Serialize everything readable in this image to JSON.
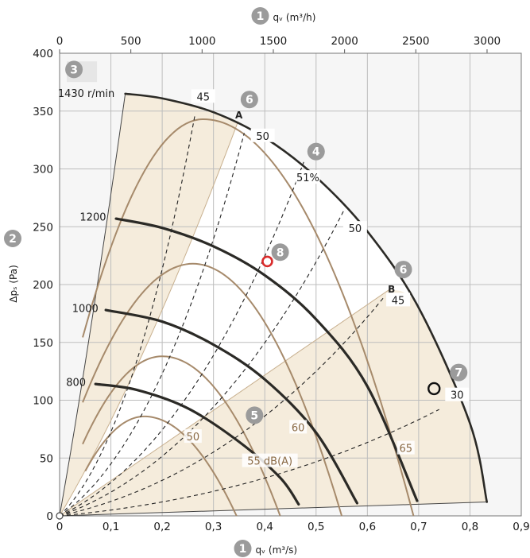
{
  "chart_data": {
    "type": "line",
    "title": "",
    "xlabel_bottom": "qᵥ (m³/s)",
    "xlabel_top": "qᵥ (m³/h)",
    "ylabel": "Δpₛ (Pa)",
    "xlim": [
      0,
      0.9
    ],
    "ylim": [
      0,
      400
    ],
    "xlim_top": [
      0,
      3240
    ],
    "x_ticks": [
      "0",
      "0,1",
      "0,2",
      "0,3",
      "0,4",
      "0,5",
      "0,6",
      "0,7",
      "0,8",
      "0,9"
    ],
    "x_tick_values": [
      0,
      0.1,
      0.2,
      0.3,
      0.4,
      0.5,
      0.6,
      0.7,
      0.8,
      0.9
    ],
    "x_top_ticks": [
      "0",
      "500",
      "1000",
      "1500",
      "2000",
      "2500",
      "3000"
    ],
    "x_top_tick_values": [
      0,
      500,
      1000,
      1500,
      2000,
      2500,
      3000
    ],
    "y_ticks": [
      "0",
      "50",
      "100",
      "150",
      "200",
      "250",
      "300",
      "350",
      "400"
    ],
    "y_tick_values": [
      0,
      50,
      100,
      150,
      200,
      250,
      300,
      350,
      400
    ],
    "grid": true,
    "speed_curves": [
      {
        "name": "1430 r/min",
        "label_at": [
          0.052,
          365
        ],
        "points": [
          [
            0.128,
            365
          ],
          [
            0.2,
            361
          ],
          [
            0.3,
            349
          ],
          [
            0.4,
            327
          ],
          [
            0.5,
            293
          ],
          [
            0.6,
            246
          ],
          [
            0.7,
            180
          ],
          [
            0.8,
            80
          ],
          [
            0.833,
            12
          ]
        ]
      },
      {
        "name": "1200",
        "label_at": [
          0.065,
          258
        ],
        "points": [
          [
            0.11,
            257
          ],
          [
            0.2,
            249
          ],
          [
            0.3,
            233
          ],
          [
            0.4,
            208
          ],
          [
            0.5,
            170
          ],
          [
            0.6,
            112
          ],
          [
            0.697,
            13
          ]
        ]
      },
      {
        "name": "1000",
        "label_at": [
          0.05,
          179
        ],
        "points": [
          [
            0.09,
            178
          ],
          [
            0.2,
            168
          ],
          [
            0.3,
            148
          ],
          [
            0.4,
            118
          ],
          [
            0.5,
            72
          ],
          [
            0.58,
            11
          ]
        ]
      },
      {
        "name": "800",
        "label_at": [
          0.032,
          115
        ],
        "points": [
          [
            0.07,
            114
          ],
          [
            0.15,
            109
          ],
          [
            0.25,
            93
          ],
          [
            0.35,
            64
          ],
          [
            0.43,
            33
          ],
          [
            0.466,
            10
          ]
        ]
      }
    ],
    "efficiency_lines": [
      {
        "label": "45",
        "label_at": [
          0.28,
          362
        ],
        "to": [
          0.264,
          347
        ]
      },
      {
        "label": "50",
        "label_at": [
          0.396,
          328
        ],
        "to": [
          0.36,
          331
        ]
      },
      {
        "label": "51%",
        "label_at": [
          0.484,
          292
        ],
        "to": [
          0.476,
          306
        ]
      },
      {
        "label": "50",
        "label_at": [
          0.576,
          248
        ],
        "to": [
          0.554,
          264
        ]
      },
      {
        "label": "45",
        "label_at": [
          0.66,
          186
        ],
        "to": [
          0.634,
          190
        ]
      },
      {
        "label": "30",
        "label_at": [
          0.775,
          104
        ],
        "to": [
          0.74,
          92
        ]
      }
    ],
    "noise_curves": [
      {
        "label": "50",
        "label_at": [
          0.26,
          68
        ],
        "apex": [
          0.165,
          86
        ],
        "ends": [
          0.05,
          0.345
        ]
      },
      {
        "label": "55 dB(A)",
        "label_at": [
          0.41,
          47
        ],
        "apex": [
          0.2,
          138
        ],
        "ends": [
          0.045,
          0.43
        ]
      },
      {
        "label": "60",
        "label_at": [
          0.465,
          76
        ],
        "apex": [
          0.26,
          218
        ],
        "ends": [
          0.045,
          0.55
        ]
      },
      {
        "label": "65",
        "label_at": [
          0.675,
          58
        ],
        "apex": [
          0.28,
          343
        ],
        "ends": [
          0.045,
          0.69
        ]
      }
    ],
    "point_A": {
      "label": "A",
      "at": [
        0.348,
        341
      ]
    },
    "point_B": {
      "label": "B",
      "at": [
        0.644,
        196
      ]
    },
    "operating_point_red": [
      0.405,
      220
    ],
    "operating_point_black": [
      0.73,
      110
    ],
    "origin_marker": [
      0,
      0
    ],
    "markers": [
      {
        "num": "1",
        "where": "top-axis-title"
      },
      {
        "num": "1",
        "where": "bottom-axis-title"
      },
      {
        "num": "2",
        "where": "y-axis-title"
      },
      {
        "num": "3",
        "at": [
          0.028,
          386
        ]
      },
      {
        "num": "4",
        "at": [
          0.5,
          315
        ]
      },
      {
        "num": "5",
        "at": [
          0.38,
          87
        ]
      },
      {
        "num": "6",
        "at": [
          0.37,
          360
        ]
      },
      {
        "num": "6",
        "at": [
          0.67,
          213
        ]
      },
      {
        "num": "7",
        "at": [
          0.778,
          124
        ]
      },
      {
        "num": "8",
        "at": [
          0.43,
          228
        ]
      }
    ],
    "colors": {
      "speed_curve": "#2b2a26",
      "noise_curve": "#a68a6b",
      "shade": "#f5ecdc",
      "grid": "#bdbdbd",
      "marker_bg": "#9b9b9b",
      "red_point": "#d92b2b"
    }
  }
}
